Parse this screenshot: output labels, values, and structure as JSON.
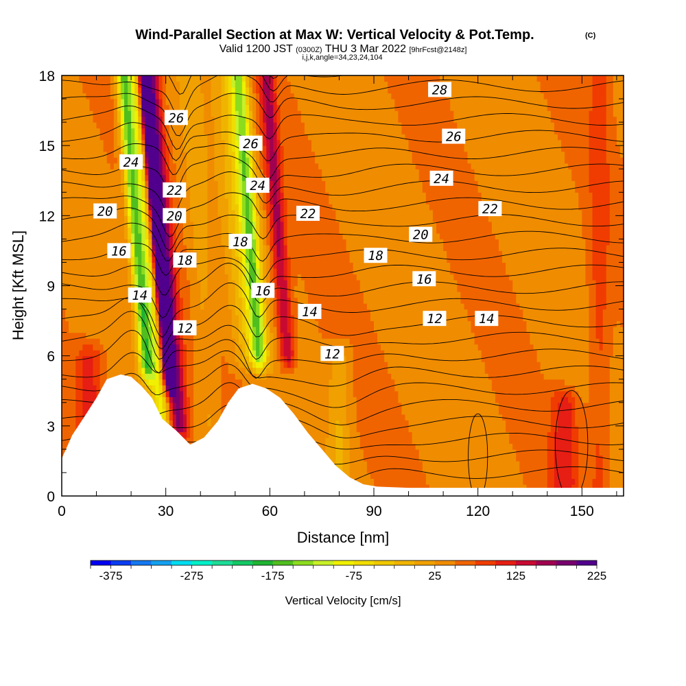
{
  "chart_data": {
    "type": "heatmap",
    "title": "Wind-Parallel Section at Max W: Vertical Velocity & Pot.Temp.",
    "title_mark": "(C)",
    "subtitle": {
      "valid": "Valid 1200 JST",
      "utc": "(0300Z)",
      "date": "THU 3 Mar 2022",
      "forecast": "[9hrFcst@2148z]",
      "indices": "i,j,k,angle=34,23,24,104"
    },
    "xlabel": "Distance [nm]",
    "ylabel": "Height [Kft MSL]",
    "xlim": [
      0,
      162
    ],
    "ylim": [
      0,
      18
    ],
    "xticks": [
      0,
      30,
      60,
      90,
      120,
      150
    ],
    "yticks": [
      0,
      3,
      6,
      9,
      12,
      15,
      18
    ],
    "grid": false,
    "colorbar": {
      "label": "Vertical Velocity [cm/s]",
      "tick_labels": [
        "-375",
        "-275",
        "-175",
        "-75",
        "25",
        "125",
        "225"
      ],
      "colors": [
        "#0000f0",
        "#0a3cf0",
        "#1478f0",
        "#14a0f0",
        "#00dcf0",
        "#00f0c8",
        "#1edc96",
        "#14c864",
        "#1eb432",
        "#50be1e",
        "#8cdc1e",
        "#c8f028",
        "#f0f000",
        "#f0dc00",
        "#f0c800",
        "#f0b400",
        "#f0a000",
        "#f08c00",
        "#f06400",
        "#f03c00",
        "#e61e14",
        "#c80a32",
        "#a00050",
        "#78006e",
        "#50008c"
      ],
      "vmin": -400,
      "vmax": 250,
      "step": 25
    },
    "theta_contour_labels": [
      {
        "text": "26",
        "x": 33,
        "y": 16.2
      },
      {
        "text": "24",
        "x": 20,
        "y": 14.3
      },
      {
        "text": "22",
        "x": 32.5,
        "y": 13.1
      },
      {
        "text": "20",
        "x": 12.5,
        "y": 12.2
      },
      {
        "text": "20",
        "x": 32.5,
        "y": 12.0
      },
      {
        "text": "16",
        "x": 16.5,
        "y": 10.5
      },
      {
        "text": "18",
        "x": 35.5,
        "y": 10.1
      },
      {
        "text": "14",
        "x": 22.5,
        "y": 8.6
      },
      {
        "text": "12",
        "x": 35.5,
        "y": 7.2
      },
      {
        "text": "26",
        "x": 54.5,
        "y": 15.1
      },
      {
        "text": "24",
        "x": 56.5,
        "y": 13.3
      },
      {
        "text": "18",
        "x": 51.5,
        "y": 10.9
      },
      {
        "text": "16",
        "x": 58,
        "y": 8.8
      },
      {
        "text": "22",
        "x": 71,
        "y": 12.1
      },
      {
        "text": "14",
        "x": 71.5,
        "y": 7.9
      },
      {
        "text": "12",
        "x": 78,
        "y": 6.1
      },
      {
        "text": "28",
        "x": 109,
        "y": 17.4
      },
      {
        "text": "26",
        "x": 113,
        "y": 15.4
      },
      {
        "text": "24",
        "x": 109.5,
        "y": 13.6
      },
      {
        "text": "22",
        "x": 123.5,
        "y": 12.3
      },
      {
        "text": "20",
        "x": 103.5,
        "y": 11.2
      },
      {
        "text": "18",
        "x": 90.5,
        "y": 10.3
      },
      {
        "text": "16",
        "x": 104.5,
        "y": 9.3
      },
      {
        "text": "12",
        "x": 107.5,
        "y": 7.6
      },
      {
        "text": "14",
        "x": 122.5,
        "y": 7.6
      }
    ],
    "terrain": [
      [
        0,
        1.6
      ],
      [
        3,
        2.6
      ],
      [
        7,
        3.5
      ],
      [
        10,
        4.2
      ],
      [
        13,
        5.0
      ],
      [
        17,
        5.2
      ],
      [
        20,
        5.1
      ],
      [
        23,
        4.7
      ],
      [
        26,
        4.2
      ],
      [
        29,
        3.3
      ],
      [
        33,
        2.8
      ],
      [
        37,
        2.2
      ],
      [
        41,
        2.5
      ],
      [
        45,
        3.2
      ],
      [
        48,
        4.0
      ],
      [
        51,
        4.6
      ],
      [
        55,
        4.8
      ],
      [
        59,
        4.6
      ],
      [
        63,
        4.2
      ],
      [
        67,
        3.5
      ],
      [
        71,
        2.7
      ],
      [
        75,
        2.0
      ],
      [
        79,
        1.3
      ],
      [
        83,
        0.8
      ],
      [
        87,
        0.5
      ],
      [
        91,
        0.4
      ],
      [
        100,
        0.35
      ],
      [
        162,
        0.35
      ]
    ],
    "w_field": [
      {
        "x": 22,
        "w": -190,
        "sx": 2.0,
        "ytop": 18,
        "ybot": 5.5,
        "slope": 0.55
      },
      {
        "x": 25,
        "w": -120,
        "sx": 2.4,
        "ytop": 18,
        "ybot": 3.0,
        "slope": 0.55
      },
      {
        "x": 28,
        "w": 230,
        "sx": 1.6,
        "ytop": 18,
        "ybot": 5.0,
        "slope": 0.55
      },
      {
        "x": 30,
        "w": 140,
        "sx": 2.6,
        "ytop": 18,
        "ybot": 3.0,
        "slope": 0.55
      },
      {
        "x": 55,
        "w": -160,
        "sx": 2.4,
        "ytop": 18,
        "ybot": 6.0,
        "slope": 0.5
      },
      {
        "x": 52,
        "w": -60,
        "sx": 4.0,
        "ytop": 18,
        "ybot": 6.0,
        "slope": 0.5
      },
      {
        "x": 63,
        "w": 110,
        "sx": 2.2,
        "ytop": 18,
        "ybot": 6.0,
        "slope": 0.5
      },
      {
        "x": 40,
        "w": -30,
        "sx": 3.0,
        "ytop": 18,
        "ybot": 3.0,
        "slope": 0.4
      },
      {
        "x": 80,
        "w": -45,
        "sx": 3.0,
        "ytop": 6.0,
        "ybot": 0.5,
        "slope": 0.0
      },
      {
        "x": 8,
        "w": 60,
        "sx": 4.0,
        "ytop": 6.0,
        "ybot": 2.0,
        "slope": 0.0
      },
      {
        "x": 145,
        "w": 70,
        "sx": 4.0,
        "ytop": 4.0,
        "ybot": 0.4,
        "slope": 0.0
      },
      {
        "x": 155,
        "w": 40,
        "sx": 3.0,
        "ytop": 18,
        "ybot": 0.4,
        "slope": 0.0
      }
    ]
  }
}
